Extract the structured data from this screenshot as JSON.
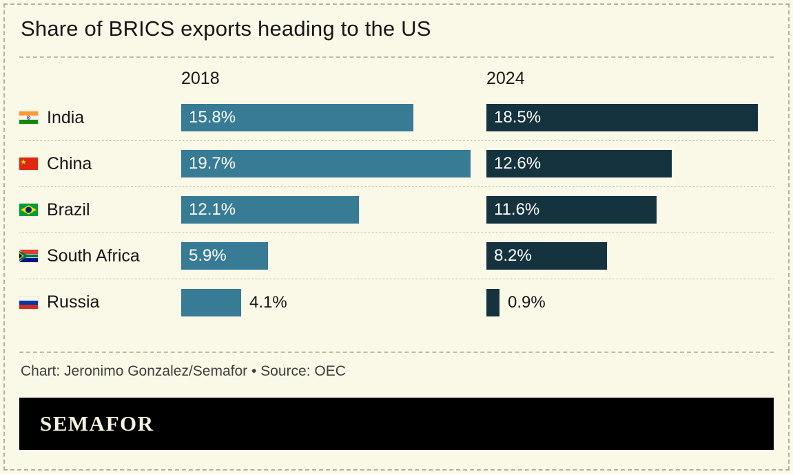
{
  "title": "Share of BRICS exports heading to the US",
  "chart_data": {
    "type": "bar",
    "orientation": "horizontal",
    "categories": [
      "India",
      "China",
      "Brazil",
      "South Africa",
      "Russia"
    ],
    "series": [
      {
        "name": "2018",
        "color": "#377b95",
        "values": [
          15.8,
          19.7,
          12.1,
          5.9,
          4.1
        ]
      },
      {
        "name": "2024",
        "color": "#14333f",
        "values": [
          18.5,
          12.6,
          11.6,
          8.2,
          0.9
        ]
      }
    ],
    "value_suffix": "%",
    "scale_max": 19.7,
    "label_inside_threshold": 5,
    "title": "Share of BRICS exports heading to the US",
    "legend_position": "column-headers",
    "grid": false,
    "flag_icons": [
      "flag-india-icon",
      "flag-china-icon",
      "flag-brazil-icon",
      "flag-south-africa-icon",
      "flag-russia-icon"
    ]
  },
  "footer": {
    "credit": "Chart: Jeronimo Gonzalez/Semafor • Source: OEC",
    "brand": "SEMAFOR"
  },
  "colors": {
    "background": "#faf8e7",
    "bar_2018": "#377b95",
    "bar_2024": "#14333f",
    "text": "#161616",
    "credit_text": "#3e3e3e",
    "band_background": "#000000",
    "brand_text": "#f8f4df"
  }
}
